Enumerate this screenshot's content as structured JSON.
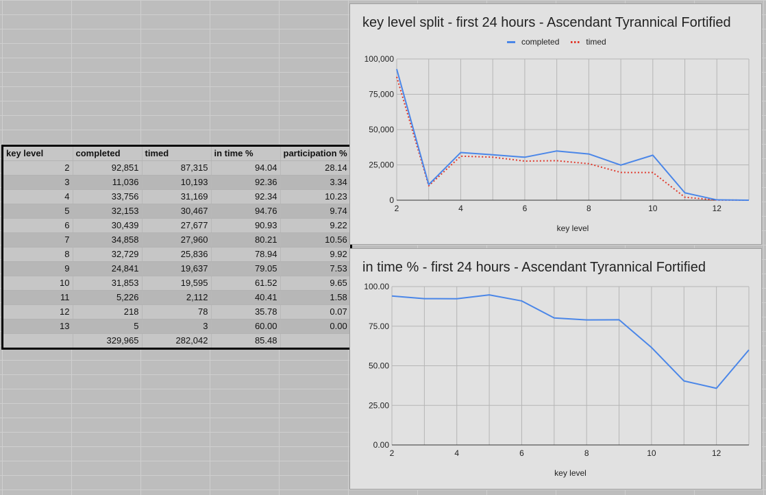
{
  "table": {
    "headers": [
      "key level",
      "completed",
      "timed",
      "in time %",
      "participation %"
    ],
    "rows": [
      [
        "2",
        "92,851",
        "87,315",
        "94.04",
        "28.14"
      ],
      [
        "3",
        "11,036",
        "10,193",
        "92.36",
        "3.34"
      ],
      [
        "4",
        "33,756",
        "31,169",
        "92.34",
        "10.23"
      ],
      [
        "5",
        "32,153",
        "30,467",
        "94.76",
        "9.74"
      ],
      [
        "6",
        "30,439",
        "27,677",
        "90.93",
        "9.22"
      ],
      [
        "7",
        "34,858",
        "27,960",
        "80.21",
        "10.56"
      ],
      [
        "8",
        "32,729",
        "25,836",
        "78.94",
        "9.92"
      ],
      [
        "9",
        "24,841",
        "19,637",
        "79.05",
        "7.53"
      ],
      [
        "10",
        "31,853",
        "19,595",
        "61.52",
        "9.65"
      ],
      [
        "11",
        "5,226",
        "2,112",
        "40.41",
        "1.58"
      ],
      [
        "12",
        "218",
        "78",
        "35.78",
        "0.07"
      ],
      [
        "13",
        "5",
        "3",
        "60.00",
        "0.00"
      ]
    ],
    "totals": [
      "",
      "329,965",
      "282,042",
      "85.48",
      ""
    ]
  },
  "chart_data": [
    {
      "type": "line",
      "title": "key level split - first 24 hours - Ascendant Tyrannical Fortified",
      "xlabel": "key level",
      "ylabel": "",
      "x": [
        2,
        3,
        4,
        5,
        6,
        7,
        8,
        9,
        10,
        11,
        12,
        13
      ],
      "xlim": [
        2,
        13
      ],
      "ylim": [
        0,
        100000
      ],
      "xticks": [
        "2",
        "4",
        "6",
        "8",
        "10",
        "12"
      ],
      "yticks": [
        "0",
        "25,000",
        "50,000",
        "75,000",
        "100,000"
      ],
      "grid": true,
      "legend": "top",
      "series": [
        {
          "name": "completed",
          "color": "#4a86e8",
          "style": "solid",
          "values": [
            92851,
            11036,
            33756,
            32153,
            30439,
            34858,
            32729,
            24841,
            31853,
            5226,
            218,
            5
          ]
        },
        {
          "name": "timed",
          "color": "#e0382b",
          "style": "dotted",
          "values": [
            87315,
            10193,
            31169,
            30467,
            27677,
            27960,
            25836,
            19637,
            19595,
            2112,
            78,
            3
          ]
        }
      ]
    },
    {
      "type": "line",
      "title": "in time % - first 24 hours - Ascendant Tyrannical Fortified",
      "xlabel": "key level",
      "ylabel": "",
      "x": [
        2,
        3,
        4,
        5,
        6,
        7,
        8,
        9,
        10,
        11,
        12,
        13
      ],
      "xlim": [
        2,
        13
      ],
      "ylim": [
        0,
        100
      ],
      "xticks": [
        "2",
        "4",
        "6",
        "8",
        "10",
        "12"
      ],
      "yticks": [
        "0.00",
        "25.00",
        "50.00",
        "75.00",
        "100.00"
      ],
      "grid": true,
      "legend": "none",
      "series": [
        {
          "name": "in time %",
          "color": "#4a86e8",
          "style": "solid",
          "values": [
            94.04,
            92.36,
            92.34,
            94.76,
            90.93,
            80.21,
            78.94,
            79.05,
            61.52,
            40.41,
            35.78,
            60.0
          ]
        }
      ]
    }
  ]
}
